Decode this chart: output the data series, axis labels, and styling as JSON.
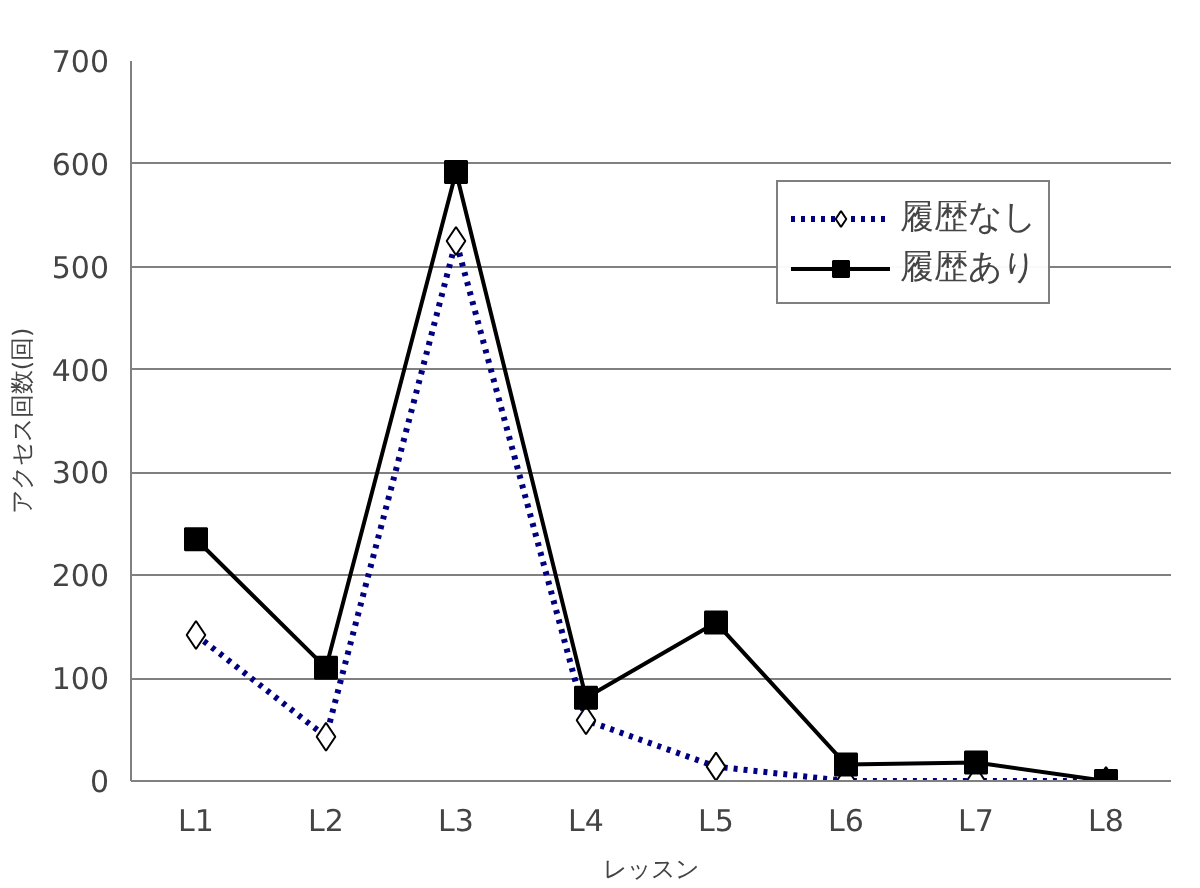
{
  "chart_data": {
    "type": "line",
    "xlabel": "レッスン",
    "ylabel": "アクセス回数(回)",
    "categories": [
      "L1",
      "L2",
      "L3",
      "L4",
      "L5",
      "L6",
      "L7",
      "L8"
    ],
    "ylim": [
      0,
      700
    ],
    "yticks": [
      0,
      100,
      200,
      300,
      400,
      500,
      600,
      700
    ],
    "grid": "y",
    "legend": "top right",
    "series": [
      {
        "name": "履歴なし",
        "color": "#000080",
        "marker": "diamond",
        "line_style": "dotted",
        "values": [
          142,
          43,
          525,
          59,
          14,
          0,
          0,
          0
        ]
      },
      {
        "name": "履歴あり",
        "color": "#000000",
        "marker": "square",
        "line_style": "solid",
        "values": [
          235,
          110,
          592,
          81,
          154,
          16,
          18,
          0
        ]
      }
    ]
  }
}
